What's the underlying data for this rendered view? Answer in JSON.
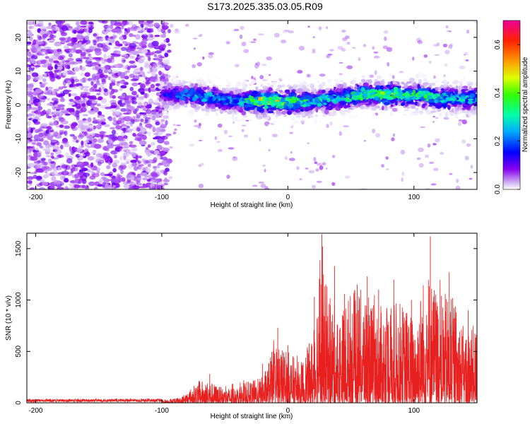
{
  "title": "S173.2025.335.03.05.R09",
  "chart_data": [
    {
      "type": "heatmap",
      "title": "S173.2025.335.03.05.R09",
      "xlabel": "Height of straight line (km)",
      "ylabel": "Frequency (Hz)",
      "xlim": [
        -207,
        150
      ],
      "ylim": [
        -25,
        25
      ],
      "x_ticks": [
        -200,
        -100,
        0,
        100
      ],
      "x_tick_labels": [
        "-200",
        "-100",
        "0",
        "100"
      ],
      "y_ticks": [
        -20,
        -10,
        0,
        10,
        20
      ],
      "y_tick_labels": [
        "-20",
        "-10",
        "0",
        "10",
        "20"
      ],
      "colorbar": {
        "label": "Normalized spectral amplitude",
        "range": [
          0.0,
          0.7
        ],
        "ticks": [
          0.0,
          0.2,
          0.4,
          0.6
        ],
        "tick_labels": [
          "0.0",
          "0.2",
          "0.4",
          "0.6"
        ]
      },
      "ridge": {
        "description": "spectral energy concentrated along a narrow band of frequency for heights above about -100 km",
        "x": [
          -100,
          -80,
          -60,
          -40,
          -20,
          0,
          20,
          40,
          60,
          80,
          100,
          120,
          150
        ],
        "center_freq": [
          3,
          3,
          2,
          1,
          1,
          1,
          1,
          2,
          3,
          3,
          3,
          2,
          2
        ],
        "peak_amplitude": [
          0.15,
          0.25,
          0.3,
          0.25,
          0.55,
          0.45,
          0.35,
          0.3,
          0.45,
          0.45,
          0.4,
          0.35,
          0.3
        ]
      },
      "noise_region": {
        "x_range": [
          -207,
          -100
        ],
        "freq_range": [
          -25,
          25
        ],
        "amplitude": 0.1
      }
    },
    {
      "type": "line",
      "xlabel": "Height of straight line (km)",
      "ylabel": "SNR (10 * v/v)",
      "xlim": [
        -207,
        150
      ],
      "ylim": [
        0,
        1650
      ],
      "x_ticks": [
        -200,
        -100,
        0,
        100
      ],
      "x_tick_labels": [
        "-200",
        "-100",
        "0",
        "100"
      ],
      "y_ticks": [
        0,
        500,
        1000,
        1500
      ],
      "y_tick_labels": [
        "0",
        "500",
        "1000",
        "1500"
      ],
      "series": [
        {
          "name": "SNR",
          "color": "#e82020",
          "envelope_x": [
            -207,
            -100,
            -85,
            -70,
            -60,
            -50,
            -40,
            -30,
            -20,
            -10,
            0,
            10,
            20,
            25,
            30,
            40,
            50,
            60,
            70,
            80,
            90,
            100,
            110,
            120,
            130,
            140,
            150
          ],
          "envelope_y": [
            35,
            40,
            60,
            260,
            230,
            160,
            200,
            250,
            300,
            700,
            600,
            450,
            800,
            1640,
            1400,
            1000,
            1300,
            1300,
            1050,
            1200,
            1150,
            1000,
            1620,
            1250,
            1250,
            850,
            900
          ],
          "peaks": [
            [
              -62,
              280
            ],
            [
              -35,
              220
            ],
            [
              -20,
              380
            ],
            [
              -8,
              730
            ],
            [
              0,
              560
            ],
            [
              21,
              1030
            ],
            [
              27,
              1640
            ],
            [
              37,
              1330
            ],
            [
              45,
              1060
            ],
            [
              55,
              1150
            ],
            [
              63,
              1230
            ],
            [
              72,
              1100
            ],
            [
              84,
              1200
            ],
            [
              98,
              1000
            ],
            [
              113,
              1620
            ],
            [
              128,
              1270
            ],
            [
              143,
              900
            ]
          ]
        }
      ]
    }
  ]
}
